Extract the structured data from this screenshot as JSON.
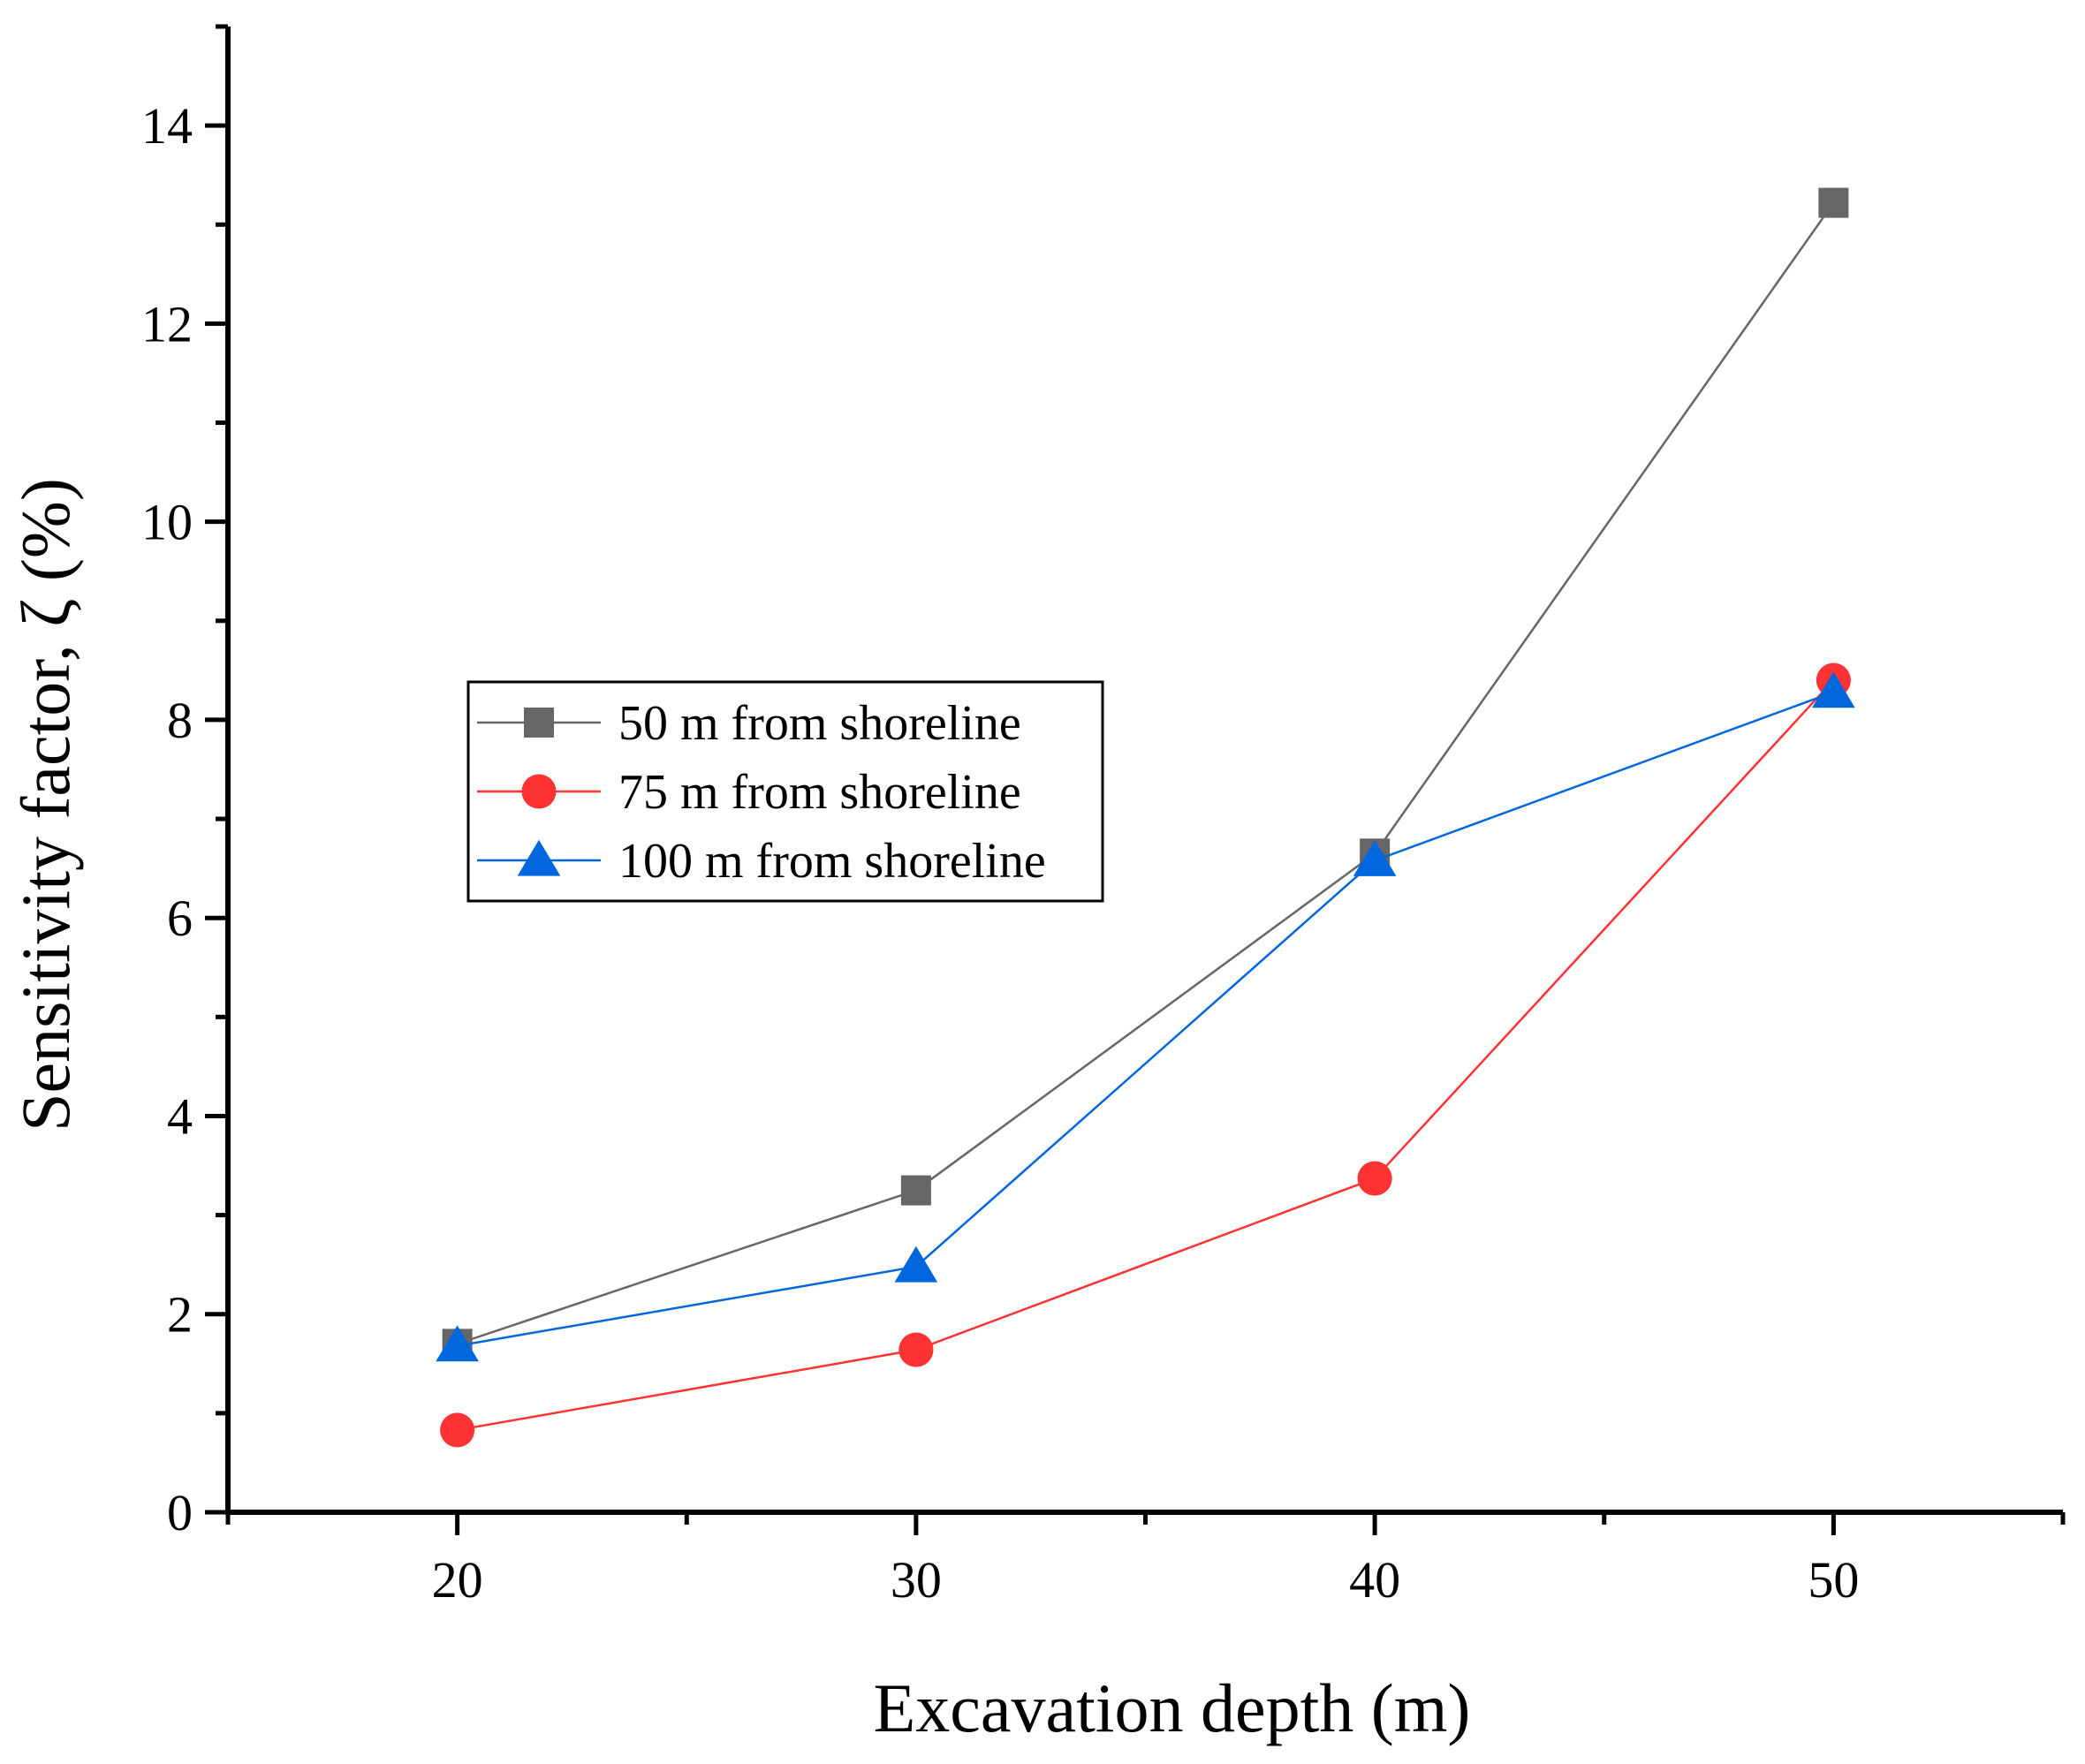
{
  "chart_data": {
    "type": "line",
    "title": "",
    "xlabel": "Excavation depth (m)",
    "ylabel": "Sensitivity factor, ζ (%)",
    "x": [
      20,
      30,
      40,
      50
    ],
    "xlim": [
      15,
      55
    ],
    "ylim": [
      0,
      15
    ],
    "x_ticks": [
      20,
      30,
      40,
      50
    ],
    "x_tick_labels": [
      "20",
      "30",
      "40",
      "50"
    ],
    "y_ticks": [
      0,
      2,
      4,
      6,
      8,
      10,
      12,
      14
    ],
    "y_tick_labels": [
      "0",
      "2",
      "4",
      "6",
      "8",
      "10",
      "12",
      "14"
    ],
    "grid": false,
    "legend_position": "center-left",
    "series": [
      {
        "name": "50 m from shoreline",
        "marker": "square",
        "color": "#666666",
        "values": [
          1.7,
          3.25,
          6.65,
          13.22
        ]
      },
      {
        "name": "75 m from shoreline",
        "marker": "circle",
        "color": "#ff3333",
        "values": [
          0.83,
          1.64,
          3.37,
          8.4
        ]
      },
      {
        "name": "100 m from shoreline",
        "marker": "triangle",
        "color": "#0066dd",
        "values": [
          1.68,
          2.48,
          6.58,
          8.28
        ]
      }
    ]
  }
}
